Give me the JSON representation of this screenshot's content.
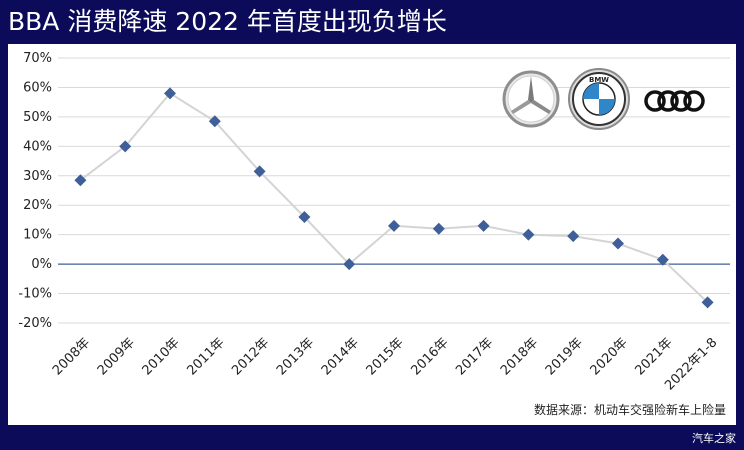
{
  "title": "BBA 消费降速 2022 年首度出现负增长",
  "chart_data": {
    "type": "line",
    "title": "",
    "xlabel": "",
    "ylabel": "",
    "ylim": [
      -20,
      70
    ],
    "yticks": [
      -20,
      -10,
      0,
      10,
      20,
      30,
      40,
      50,
      60,
      70
    ],
    "ytick_labels": [
      "-20%",
      "-10%",
      "0%",
      "10%",
      "20%",
      "30%",
      "40%",
      "50%",
      "60%",
      "70%"
    ],
    "categories": [
      "2008年",
      "2009年",
      "2010年",
      "2011年",
      "2012年",
      "2013年",
      "2014年",
      "2015年",
      "2016年",
      "2017年",
      "2018年",
      "2019年",
      "2020年",
      "2021年",
      "2022年1-8"
    ],
    "series": [
      {
        "values": [
          28.5,
          40,
          58,
          48.5,
          31.5,
          16,
          0,
          13,
          12,
          13,
          10,
          9.5,
          7,
          1.5,
          -13
        ],
        "line_color": "#d4d4d4",
        "marker_color": "#3f5f98"
      }
    ],
    "zero_line_color": "#3f5f98",
    "grid": true,
    "legend": "none"
  },
  "logos": [
    {
      "icon": "mercedes-benz-logo"
    },
    {
      "icon": "bmw-logo",
      "text": "BMW"
    },
    {
      "icon": "audi-logo"
    }
  ],
  "source": "数据来源：机动车交强险新车上险量",
  "watermark": "汽车之家"
}
